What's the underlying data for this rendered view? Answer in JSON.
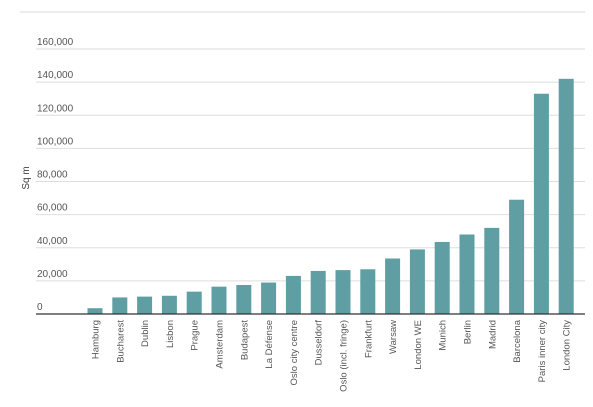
{
  "chart_data": {
    "type": "bar",
    "title": "",
    "xlabel": "",
    "ylabel": "Sq m",
    "ylim": [
      0,
      160000
    ],
    "yticks": [
      "0",
      "20,000",
      "40,000",
      "60,000",
      "80,000",
      "100,000",
      "120,000",
      "140,000",
      "160,000"
    ],
    "grid": true,
    "bar_color": "#5f9ea3",
    "categories": [
      "Hamburg",
      "Bucharest",
      "Dublin",
      "Lisbon",
      "Prague",
      "Amsterdam",
      "Budapest",
      "La Défense",
      "Oslo city centre",
      "Dusseldorf",
      "Oslo (incl. fringe)",
      "Frankfurt",
      "Warsaw",
      "London WE",
      "Munich",
      "Berlin",
      "Madrid",
      "Barcelona",
      "Paris inner city",
      "London City"
    ],
    "values": [
      3500,
      10000,
      10500,
      11000,
      13500,
      16500,
      17500,
      19000,
      23000,
      26000,
      26500,
      27000,
      33500,
      39000,
      43500,
      48000,
      52000,
      69000,
      133000,
      142000
    ]
  }
}
